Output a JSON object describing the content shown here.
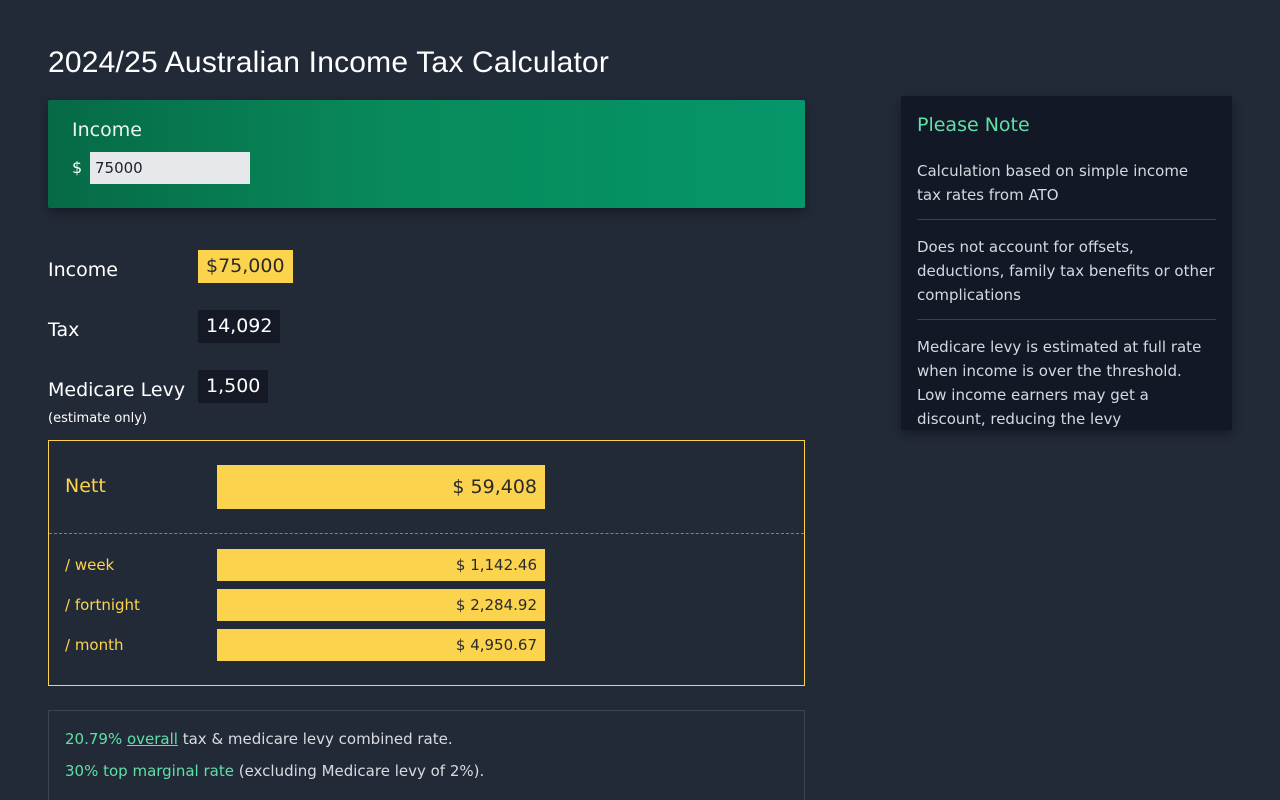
{
  "page": {
    "title": "2024/25 Australian Income Tax Calculator"
  },
  "income_input": {
    "label": "Income",
    "currency_symbol": "$",
    "value": "75000"
  },
  "summary": {
    "income": {
      "label": "Income",
      "value": "$75,000"
    },
    "tax": {
      "label": "Tax",
      "value": "14,092"
    },
    "medicare": {
      "label": "Medicare Levy",
      "note": "(estimate only)",
      "value": "1,500"
    }
  },
  "nett": {
    "label": "Nett",
    "value": "$ 59,408",
    "periods": [
      {
        "label": "/ week",
        "value": "$ 1,142.46"
      },
      {
        "label": "/ fortnight",
        "value": "$ 2,284.92"
      },
      {
        "label": "/ month",
        "value": "$ 4,950.67"
      }
    ]
  },
  "rates": {
    "overall_rate": "20.79%",
    "overall_link": "overall",
    "overall_suffix": " tax & medicare levy combined rate.",
    "marginal_rate": "30% top marginal rate",
    "marginal_suffix": " (excluding Medicare levy of 2%)."
  },
  "note": {
    "title": "Please Note",
    "items": [
      "Calculation based on simple income tax rates from ATO",
      "Does not account for offsets, deductions, family tax benefits or other complications",
      "Medicare levy is estimated at full rate when income is over the threshold. Low income earners may get a discount, reducing the levy"
    ]
  },
  "colors": {
    "background": "#222a38",
    "accent_green": "#5ee0a6",
    "highlight_yellow": "#fcd34d",
    "panel_green": "#088a5a"
  }
}
